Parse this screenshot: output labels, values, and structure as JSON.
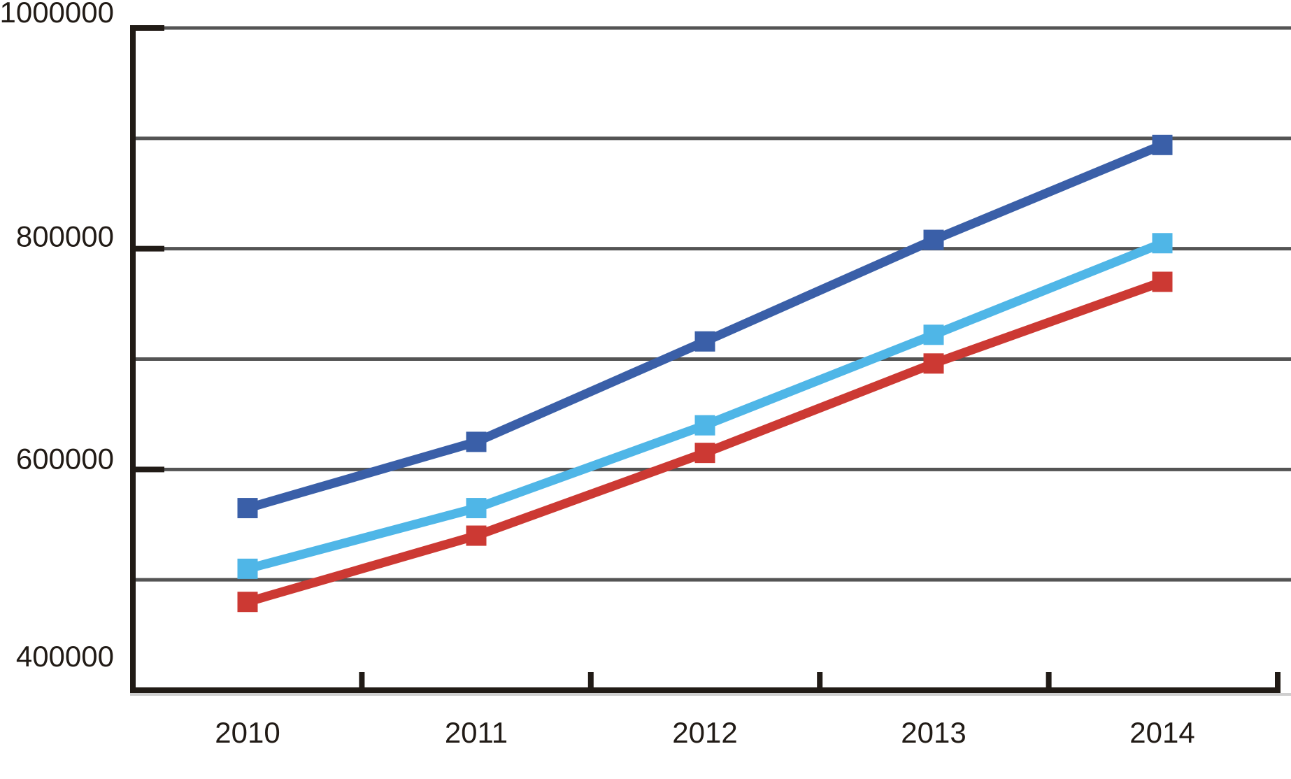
{
  "chart_data": {
    "type": "line",
    "title": "",
    "categories": [
      "2010",
      "2011",
      "2012",
      "2013",
      "2014"
    ],
    "series": [
      {
        "name": "dark-blue",
        "color": "#3A5FA8",
        "values": [
          565000,
          625000,
          716000,
          808000,
          894000
        ]
      },
      {
        "name": "light-blue",
        "color": "#4FB6E7",
        "values": [
          510000,
          565000,
          640000,
          722000,
          805000
        ]
      },
      {
        "name": "red",
        "color": "#CC3933",
        "values": [
          480000,
          540000,
          615000,
          696000,
          770000
        ]
      }
    ],
    "ylim": [
      400000,
      1000000
    ],
    "y_gridline_step": 100000,
    "y_label_step": 200000,
    "y_axis_labels": [
      "1000000",
      "800000",
      "600000",
      "400000"
    ],
    "x_axis_labels": [
      "2010",
      "2011",
      "2012",
      "2013",
      "2014"
    ],
    "grid": "horizontal",
    "legend_position": "none",
    "marker": "square",
    "styles": {
      "gridline_color": "#545454",
      "axis_color": "#211B16",
      "text_color": "#211B16",
      "background": "#FFFFFF",
      "axis_shadow_color": "#CFCFCF"
    }
  }
}
